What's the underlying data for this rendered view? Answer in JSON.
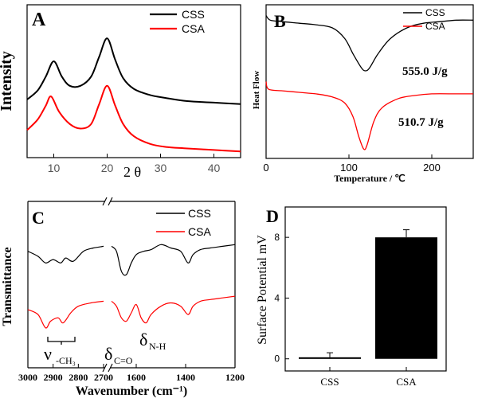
{
  "chart_data": [
    {
      "panel": "A",
      "type": "line",
      "xlabel": "2 θ",
      "ylabel": "Intensity",
      "xlim": [
        5,
        45
      ],
      "x_ticks": [
        10,
        20,
        30,
        40
      ],
      "legend_placement": "top-right",
      "series": [
        {
          "name": "CSS",
          "color": "#000000",
          "x": [
            5,
            7,
            8.5,
            10,
            11.5,
            13,
            15,
            17,
            18.5,
            20,
            21.5,
            23,
            25,
            28,
            31,
            35,
            40,
            45
          ],
          "y": [
            0.38,
            0.44,
            0.53,
            0.63,
            0.53,
            0.47,
            0.47,
            0.53,
            0.66,
            0.78,
            0.64,
            0.52,
            0.45,
            0.41,
            0.39,
            0.37,
            0.36,
            0.35
          ]
        },
        {
          "name": "CSA",
          "color": "#ff0000",
          "x": [
            5,
            7,
            8.5,
            9.5,
            11,
            13,
            15,
            17,
            18.5,
            20,
            21.5,
            23,
            25,
            28,
            31,
            35,
            40,
            45
          ],
          "y": [
            0.18,
            0.25,
            0.34,
            0.4,
            0.3,
            0.22,
            0.19,
            0.22,
            0.35,
            0.47,
            0.34,
            0.22,
            0.14,
            0.09,
            0.07,
            0.06,
            0.05,
            0.04
          ]
        }
      ]
    },
    {
      "panel": "B",
      "type": "line",
      "xlabel": "Temperature / ℃",
      "ylabel": "Heat Flow",
      "xlim": [
        0,
        250
      ],
      "x_ticks": [
        0,
        100,
        200
      ],
      "legend_placement": "top-right",
      "annotations": [
        "555.0 J/g",
        "510.7 J/g"
      ],
      "series": [
        {
          "name": "CSS",
          "color": "#000000",
          "x": [
            0,
            5,
            20,
            40,
            60,
            80,
            95,
            105,
            115,
            120,
            125,
            135,
            150,
            170,
            190,
            210,
            230,
            250
          ],
          "y": [
            0.93,
            0.9,
            0.89,
            0.88,
            0.87,
            0.85,
            0.78,
            0.68,
            0.59,
            0.57,
            0.59,
            0.68,
            0.78,
            0.85,
            0.88,
            0.89,
            0.9,
            0.9
          ]
        },
        {
          "name": "CSA",
          "color": "#ff0000",
          "x": [
            0,
            3,
            20,
            40,
            60,
            80,
            95,
            105,
            112,
            118,
            122,
            130,
            140,
            160,
            180,
            200,
            230,
            250
          ],
          "y": [
            0.5,
            0.45,
            0.44,
            0.43,
            0.42,
            0.4,
            0.36,
            0.27,
            0.14,
            0.06,
            0.09,
            0.24,
            0.33,
            0.39,
            0.41,
            0.42,
            0.42,
            0.42
          ]
        }
      ]
    },
    {
      "panel": "C",
      "type": "line",
      "xlabel": "Wavenumber (cm⁻¹)",
      "ylabel": "Transmittance",
      "xlim": [
        3000,
        1200
      ],
      "x_ticks": [
        3000,
        2900,
        2800,
        2700,
        1600,
        1400,
        1200
      ],
      "axis_break": "between 2700 and 1700",
      "legend_placement": "top-right",
      "annotations": {
        "nu": "ν",
        "nu_sub": "-CH₃",
        "delta_co": "δ",
        "delta_co_sub": "C=O",
        "delta_nh": "δ",
        "delta_nh_sub": "N-H"
      },
      "series": [
        {
          "name": "CSS",
          "color": "#000000",
          "segments": [
            {
              "x": [
                3000,
                2960,
                2930,
                2900,
                2870,
                2850,
                2820,
                2780,
                2740,
                2700
              ],
              "y": [
                0.7,
                0.67,
                0.63,
                0.65,
                0.63,
                0.66,
                0.64,
                0.7,
                0.72,
                0.73
              ]
            },
            {
              "x": [
                1700,
                1680,
                1660,
                1640,
                1620,
                1600,
                1570,
                1540,
                1500,
                1460,
                1420,
                1390,
                1370,
                1340,
                1300,
                1250,
                1200
              ],
              "y": [
                0.73,
                0.7,
                0.58,
                0.56,
                0.63,
                0.68,
                0.7,
                0.71,
                0.74,
                0.72,
                0.7,
                0.63,
                0.68,
                0.71,
                0.72,
                0.73,
                0.74
              ]
            }
          ]
        },
        {
          "name": "CSA",
          "color": "#ff0000",
          "segments": [
            {
              "x": [
                3000,
                2960,
                2930,
                2910,
                2880,
                2860,
                2830,
                2800,
                2750,
                2700
              ],
              "y": [
                0.35,
                0.32,
                0.24,
                0.28,
                0.3,
                0.27,
                0.33,
                0.37,
                0.39,
                0.4
              ]
            },
            {
              "x": [
                1700,
                1680,
                1660,
                1640,
                1620,
                1600,
                1580,
                1560,
                1540,
                1500,
                1460,
                1420,
                1390,
                1370,
                1340,
                1300,
                1250,
                1200
              ],
              "y": [
                0.4,
                0.37,
                0.3,
                0.28,
                0.33,
                0.38,
                0.3,
                0.27,
                0.32,
                0.37,
                0.39,
                0.37,
                0.32,
                0.37,
                0.4,
                0.41,
                0.42,
                0.43
              ]
            }
          ]
        }
      ]
    },
    {
      "panel": "D",
      "type": "bar",
      "ylabel": "Surface Potential mV",
      "categories": [
        "CSS",
        "CSA"
      ],
      "values": [
        0.1,
        8.0
      ],
      "errors": [
        0.3,
        0.5
      ],
      "ylim": [
        -0.8,
        10
      ],
      "y_ticks": [
        0,
        4,
        8
      ],
      "bar_color": "#000000"
    }
  ]
}
